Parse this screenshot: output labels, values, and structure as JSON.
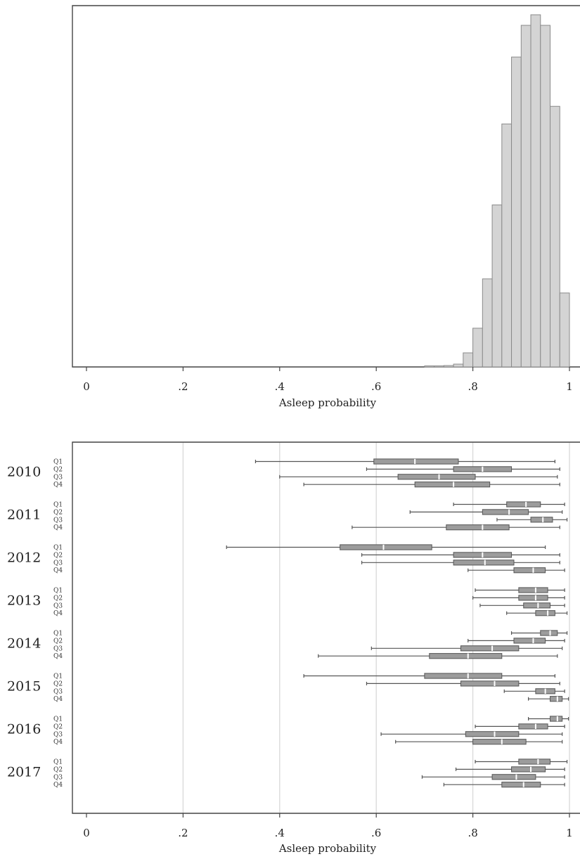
{
  "chart_data": [
    {
      "type": "histogram",
      "xlabel": "Asleep probability",
      "xlim": [
        0,
        1
      ],
      "xticks": [
        {
          "value": 0,
          "label": "0"
        },
        {
          "value": 0.2,
          "label": ".2"
        },
        {
          "value": 0.4,
          "label": ".4"
        },
        {
          "value": 0.6,
          "label": ".6"
        },
        {
          "value": 0.8,
          "label": ".8"
        },
        {
          "value": 1,
          "label": "1"
        }
      ],
      "bin_width": 0.02,
      "bins": [
        {
          "start": 0.7,
          "height": 0.003
        },
        {
          "start": 0.72,
          "height": 0.003
        },
        {
          "start": 0.74,
          "height": 0.004
        },
        {
          "start": 0.76,
          "height": 0.008
        },
        {
          "start": 0.78,
          "height": 0.04
        },
        {
          "start": 0.8,
          "height": 0.11
        },
        {
          "start": 0.82,
          "height": 0.25
        },
        {
          "start": 0.84,
          "height": 0.46
        },
        {
          "start": 0.86,
          "height": 0.69
        },
        {
          "start": 0.88,
          "height": 0.88
        },
        {
          "start": 0.9,
          "height": 0.97
        },
        {
          "start": 0.92,
          "height": 1.0
        },
        {
          "start": 0.94,
          "height": 0.97
        },
        {
          "start": 0.96,
          "height": 0.74
        },
        {
          "start": 0.98,
          "height": 0.21
        }
      ],
      "grid": false,
      "legend": "none"
    },
    {
      "type": "boxplot",
      "orientation": "horizontal",
      "xlabel": "Asleep probability",
      "xlim": [
        0,
        1
      ],
      "xticks": [
        {
          "value": 0,
          "label": "0"
        },
        {
          "value": 0.2,
          "label": ".2"
        },
        {
          "value": 0.4,
          "label": ".4"
        },
        {
          "value": 0.6,
          "label": ".6"
        },
        {
          "value": 0.8,
          "label": ".8"
        },
        {
          "value": 1,
          "label": "1"
        }
      ],
      "grid": "vertical",
      "legend": "none",
      "groups": [
        {
          "year": "2010",
          "quarters": [
            {
              "label": "Q1",
              "min": 0.35,
              "q1": 0.595,
              "median": 0.68,
              "q3": 0.77,
              "max": 0.97
            },
            {
              "label": "Q2",
              "min": 0.58,
              "q1": 0.76,
              "median": 0.82,
              "q3": 0.88,
              "max": 0.98
            },
            {
              "label": "Q3",
              "min": 0.4,
              "q1": 0.645,
              "median": 0.73,
              "q3": 0.805,
              "max": 0.975
            },
            {
              "label": "Q4",
              "min": 0.45,
              "q1": 0.68,
              "median": 0.76,
              "q3": 0.835,
              "max": 0.98
            }
          ]
        },
        {
          "year": "2011",
          "quarters": [
            {
              "label": "Q1",
              "min": 0.76,
              "q1": 0.87,
              "median": 0.91,
              "q3": 0.94,
              "max": 0.99
            },
            {
              "label": "Q2",
              "min": 0.67,
              "q1": 0.82,
              "median": 0.875,
              "q3": 0.915,
              "max": 0.985
            },
            {
              "label": "Q3",
              "min": 0.85,
              "q1": 0.92,
              "median": 0.945,
              "q3": 0.965,
              "max": 0.995
            },
            {
              "label": "Q4",
              "min": 0.55,
              "q1": 0.745,
              "median": 0.82,
              "q3": 0.875,
              "max": 0.98
            }
          ]
        },
        {
          "year": "2012",
          "quarters": [
            {
              "label": "Q1",
              "min": 0.29,
              "q1": 0.525,
              "median": 0.615,
              "q3": 0.715,
              "max": 0.95
            },
            {
              "label": "Q2",
              "min": 0.57,
              "q1": 0.76,
              "median": 0.82,
              "q3": 0.88,
              "max": 0.98
            },
            {
              "label": "Q3",
              "min": 0.57,
              "q1": 0.76,
              "median": 0.825,
              "q3": 0.885,
              "max": 0.98
            },
            {
              "label": "Q4",
              "min": 0.79,
              "q1": 0.885,
              "median": 0.925,
              "q3": 0.95,
              "max": 0.99
            }
          ]
        },
        {
          "year": "2013",
          "quarters": [
            {
              "label": "Q1",
              "min": 0.805,
              "q1": 0.895,
              "median": 0.93,
              "q3": 0.955,
              "max": 0.99
            },
            {
              "label": "Q2",
              "min": 0.8,
              "q1": 0.895,
              "median": 0.93,
              "q3": 0.955,
              "max": 0.99
            },
            {
              "label": "Q3",
              "min": 0.815,
              "q1": 0.905,
              "median": 0.935,
              "q3": 0.96,
              "max": 0.99
            },
            {
              "label": "Q4",
              "min": 0.87,
              "q1": 0.93,
              "median": 0.955,
              "q3": 0.97,
              "max": 0.995
            }
          ]
        },
        {
          "year": "2014",
          "quarters": [
            {
              "label": "Q1",
              "min": 0.88,
              "q1": 0.94,
              "median": 0.96,
              "q3": 0.975,
              "max": 0.995
            },
            {
              "label": "Q2",
              "min": 0.79,
              "q1": 0.885,
              "median": 0.925,
              "q3": 0.95,
              "max": 0.99
            },
            {
              "label": "Q3",
              "min": 0.59,
              "q1": 0.775,
              "median": 0.84,
              "q3": 0.895,
              "max": 0.985
            },
            {
              "label": "Q4",
              "min": 0.48,
              "q1": 0.71,
              "median": 0.79,
              "q3": 0.86,
              "max": 0.975
            }
          ]
        },
        {
          "year": "2015",
          "quarters": [
            {
              "label": "Q1",
              "min": 0.45,
              "q1": 0.7,
              "median": 0.79,
              "q3": 0.86,
              "max": 0.97
            },
            {
              "label": "Q2",
              "min": 0.58,
              "q1": 0.775,
              "median": 0.845,
              "q3": 0.895,
              "max": 0.98
            },
            {
              "label": "Q3",
              "min": 0.865,
              "q1": 0.93,
              "median": 0.95,
              "q3": 0.97,
              "max": 0.99
            },
            {
              "label": "Q4",
              "min": 0.915,
              "q1": 0.96,
              "median": 0.975,
              "q3": 0.985,
              "max": 0.998
            }
          ]
        },
        {
          "year": "2016",
          "quarters": [
            {
              "label": "Q1",
              "min": 0.915,
              "q1": 0.96,
              "median": 0.975,
              "q3": 0.985,
              "max": 0.998
            },
            {
              "label": "Q2",
              "min": 0.805,
              "q1": 0.895,
              "median": 0.93,
              "q3": 0.955,
              "max": 0.99
            },
            {
              "label": "Q3",
              "min": 0.61,
              "q1": 0.785,
              "median": 0.845,
              "q3": 0.895,
              "max": 0.985
            },
            {
              "label": "Q4",
              "min": 0.64,
              "q1": 0.8,
              "median": 0.86,
              "q3": 0.91,
              "max": 0.985
            }
          ]
        },
        {
          "year": "2017",
          "quarters": [
            {
              "label": "Q1",
              "min": 0.805,
              "q1": 0.895,
              "median": 0.935,
              "q3": 0.96,
              "max": 0.995
            },
            {
              "label": "Q2",
              "min": 0.765,
              "q1": 0.88,
              "median": 0.92,
              "q3": 0.95,
              "max": 0.99
            },
            {
              "label": "Q3",
              "min": 0.695,
              "q1": 0.84,
              "median": 0.89,
              "q3": 0.93,
              "max": 0.99
            },
            {
              "label": "Q4",
              "min": 0.74,
              "q1": 0.86,
              "median": 0.905,
              "q3": 0.94,
              "max": 0.99
            }
          ]
        }
      ]
    }
  ]
}
